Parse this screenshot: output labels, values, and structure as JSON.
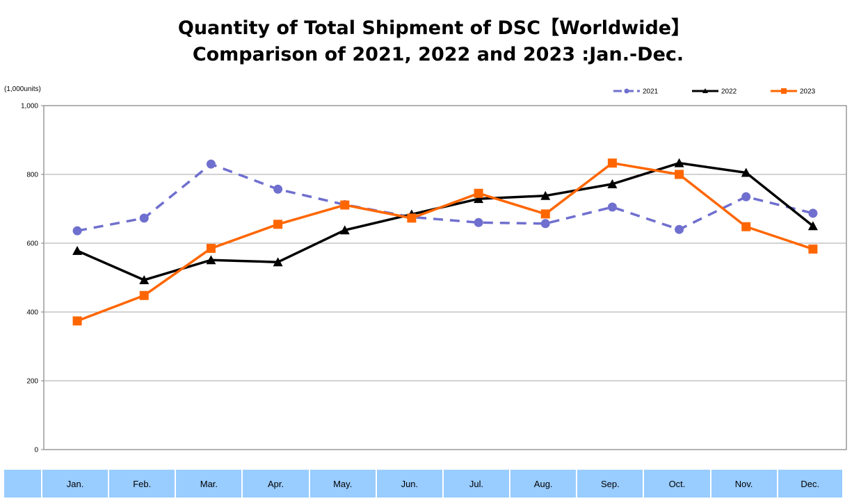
{
  "title_line1": "Quantity of Total Shipment of DSC【Worldwide】",
  "title_line2": "Comparison of 2021, 2022 and 2023 :Jan.-Dec.",
  "unit_label": "(1,000units)",
  "colors": {
    "s2021": "#6f6fcf",
    "s2022": "#000000",
    "s2023": "#ff6600",
    "month_bar": "#99ccff",
    "grid": "#a6a6a6"
  },
  "chart_data": {
    "type": "line",
    "title": "Quantity of Total Shipment of DSC【Worldwide】 Comparison of 2021, 2022 and 2023 :Jan.-Dec.",
    "xlabel": "",
    "ylabel": "(1,000units)",
    "ylim": [
      0,
      1000
    ],
    "yticks": [
      0,
      200,
      400,
      600,
      800,
      1000
    ],
    "ytick_labels": [
      "0",
      "200",
      "400",
      "600",
      "800",
      "1,000"
    ],
    "grid": true,
    "legend_position": "top-right",
    "categories": [
      "Jan.",
      "Feb.",
      "Mar.",
      "Apr.",
      "May.",
      "Jun.",
      "Jul.",
      "Aug.",
      "Sep.",
      "Oct.",
      "Nov.",
      "Dec."
    ],
    "series": [
      {
        "name": "2021",
        "style": "dashed",
        "marker": "circle",
        "color": "#6f6fcf",
        "values": [
          636,
          673,
          830,
          757,
          712,
          676,
          660,
          657,
          705,
          640,
          735,
          687
        ]
      },
      {
        "name": "2022",
        "style": "solid",
        "marker": "triangle",
        "color": "#000000",
        "values": [
          578,
          493,
          551,
          545,
          638,
          684,
          729,
          738,
          772,
          833,
          805,
          650
        ]
      },
      {
        "name": "2023",
        "style": "solid",
        "marker": "square",
        "color": "#ff6600",
        "values": [
          374,
          448,
          585,
          655,
          711,
          673,
          745,
          685,
          833,
          800,
          648,
          583
        ]
      }
    ]
  }
}
